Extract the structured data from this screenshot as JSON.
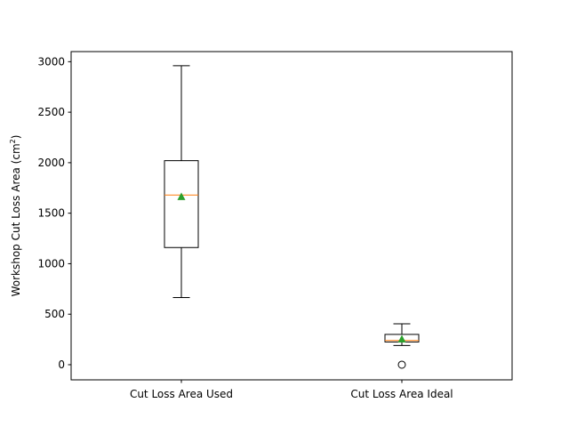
{
  "chart_data": {
    "type": "box",
    "title": "",
    "xlabel": "",
    "ylabel": "Workshop Cut Loss Area (cm",
    "ylabel_superscript": "2",
    "ylabel_suffix": ")",
    "ylim": [
      -150,
      3100
    ],
    "yticks": [
      0,
      500,
      1000,
      1500,
      2000,
      2500,
      3000
    ],
    "categories": [
      "Cut Loss Area Used",
      "Cut Loss Area Ideal"
    ],
    "boxes": [
      {
        "name": "Cut Loss Area Used",
        "whisker_low": 665,
        "q1": 1160,
        "median": 1680,
        "mean": 1665,
        "q3": 2020,
        "whisker_high": 2960,
        "outliers": []
      },
      {
        "name": "Cut Loss Area Ideal",
        "whisker_low": 190,
        "q1": 225,
        "median": 240,
        "mean": 255,
        "q3": 300,
        "whisker_high": 405,
        "outliers": [
          0
        ]
      }
    ],
    "colors": {
      "box": "#000000",
      "median": "#ff7f0e",
      "mean": "#2ca02c",
      "outlier": "#000000"
    },
    "grid": false,
    "legend": "none"
  }
}
